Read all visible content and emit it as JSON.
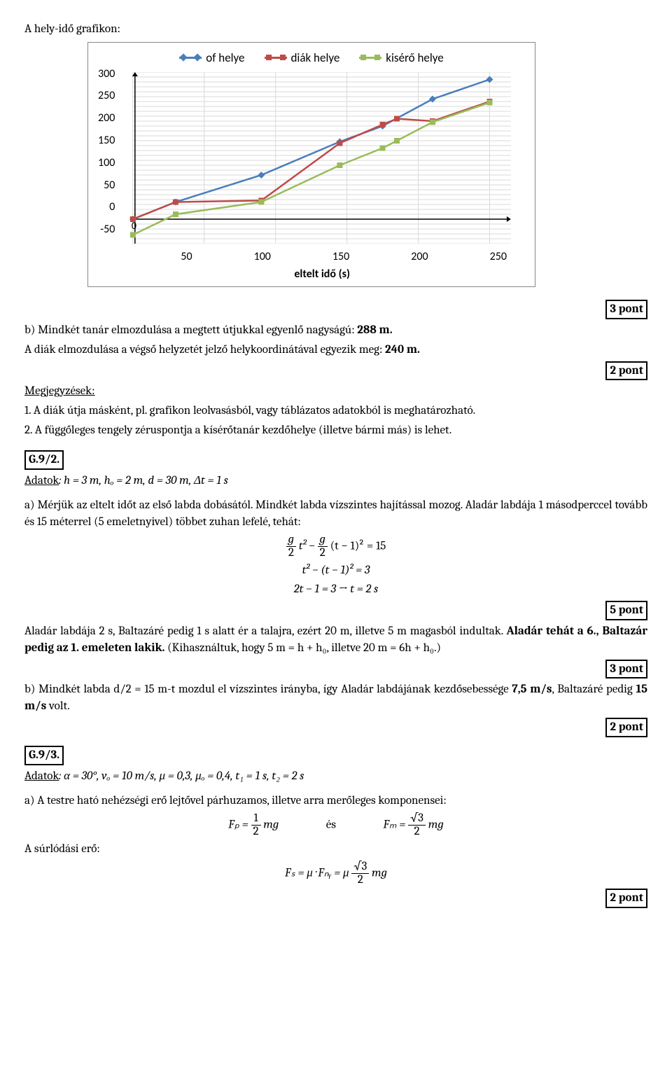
{
  "title": "A hely-idő grafikon:",
  "chart": {
    "type": "line",
    "legend": [
      {
        "label": "of helye",
        "color": "#4a7ebb",
        "marker": "diamond"
      },
      {
        "label": "diák helye",
        "color": "#be4b48",
        "marker": "square"
      },
      {
        "label": "kisérő helye",
        "color": "#9bbb59",
        "marker": "square"
      }
    ],
    "xlabel": "eltelt idő (s)",
    "x_ticks": [
      0,
      50,
      100,
      150,
      200,
      250
    ],
    "y_ticks": [
      -50,
      0,
      50,
      100,
      150,
      200,
      250,
      300
    ],
    "xlim": [
      0,
      260
    ],
    "ylim": [
      -50,
      300
    ],
    "grid_color": "#d9d9d9",
    "axis_color": "#808080",
    "background_color": "#ffffff",
    "minor_grid_y_step": 10,
    "series": [
      {
        "name": "of helye",
        "color": "#4a7ebb",
        "marker": "diamond",
        "points": [
          [
            0,
            0
          ],
          [
            30,
            35
          ],
          [
            90,
            90
          ],
          [
            145,
            158
          ],
          [
            175,
            190
          ],
          [
            210,
            245
          ],
          [
            250,
            285
          ]
        ]
      },
      {
        "name": "diák helye",
        "color": "#be4b48",
        "marker": "square",
        "points": [
          [
            0,
            0
          ],
          [
            30,
            35
          ],
          [
            90,
            38
          ],
          [
            145,
            155
          ],
          [
            175,
            193
          ],
          [
            185,
            205
          ],
          [
            210,
            200
          ],
          [
            250,
            240
          ]
        ]
      },
      {
        "name": "kisérő helye",
        "color": "#9bbb59",
        "marker": "square",
        "points": [
          [
            0,
            -32
          ],
          [
            30,
            10
          ],
          [
            90,
            35
          ],
          [
            145,
            110
          ],
          [
            175,
            145
          ],
          [
            185,
            160
          ],
          [
            210,
            198
          ],
          [
            250,
            238
          ]
        ]
      }
    ]
  },
  "points": {
    "p3a": "3 pont",
    "p2a": "2 pont",
    "p5": "5 pont",
    "p3b": "3 pont",
    "p2b": "2 pont",
    "p2c": "2 pont"
  },
  "body": {
    "b_line": "b) Mindkét tanár elmozdulása a megtett útjukkal egyenlő nagyságú: ",
    "b_value": "288 m.",
    "diak_line": "A diák elmozdulása a végső helyzetét jelző helykoordinátával egyezik meg: ",
    "diak_value": "240 m.",
    "megj_head": "Megjegyzések:",
    "megj1": "1. A diák útja másként, pl. grafikon leolvasásból, vagy táblázatos adatokból is meghatározható.",
    "megj2": "2. A függőleges tengely zéruspontja a kísérőtanár kezdőhelye (illetve bármi más) is lehet.",
    "g92": "G.9/2.",
    "adatok92": "Adatok",
    "adatok92_body": ": h = 3 m, hₒ = 2 m, d = 30 m, Δt = 1 s",
    "a_intro": "a) Mérjük az eltelt időt az első labda dobásától. Mindkét labda vízszintes hajítással mozog. Aladár labdája 1 másodperccel tovább és 15 méterrel (5 emeletnyivel) többet zuhan lefelé, tehát:",
    "eq1_lhs_g": "g",
    "eq1_lhs_2": "2",
    "eq1_body": " t² − ",
    "eq1_rhs_g": "g",
    "eq1_rhs_2": "2",
    "eq1_end": " (t − 1)² = 15",
    "eq2": "t² − (t − 1)² = 3",
    "eq3": "2t − 1 = 3    →    t = 2 s",
    "aladar_line": "Aladár labdája 2 s, Baltazáré pedig 1 s alatt ér a talajra, ezért 20 m, illetve 5 m magasból indultak. ",
    "aladar_bold": "Aladár tehát a 6., Baltazár pedig az 1. emeleten lakik.",
    "aladar_rest": " (Kihasználtuk, hogy 5 m = h + h₀, illetve 20 m = 6h + h₀.)",
    "b2_line": "b) Mindkét labda d/2 = 15 m-t mozdul el vízszintes irányba, így Aladár labdájának kezdősebessége ",
    "b2_v1": "7,5 m/s",
    "b2_mid": ", Baltazáré pedig ",
    "b2_v2": "15 m/s",
    "b2_end": " volt.",
    "g93": "G.9/3.",
    "adatok93": "Adatok",
    "adatok93_body": ": α = 30°, vₒ = 10 m/s, μ = 0,3, μₒ = 0,4, t₁ = 1 s, t₂ = 2 s",
    "forces_intro": "a) A testre ható nehézségi erő lejtővel párhuzamos, illetve arra merőleges komponensei:",
    "Fp": "Fₚ = ",
    "half_1": "1",
    "half_2": "2",
    "mg": " mg",
    "es": "és",
    "Fm": "Fₘ = ",
    "root3": "√3",
    "surlodas": "A súrlódási erő:",
    "Fs": "Fₛ = μ · Fₙᵧ = μ "
  }
}
